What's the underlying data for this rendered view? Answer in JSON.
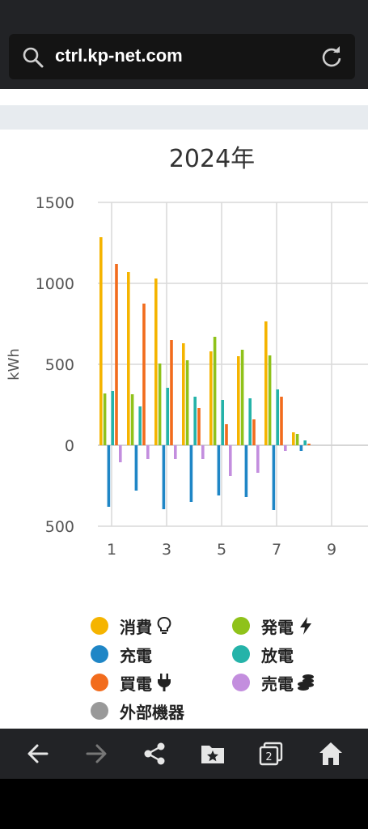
{
  "browser": {
    "url": "ctrl.kp-net.com",
    "tab_count": "2"
  },
  "legend": [
    {
      "label": "消費",
      "color": "#f5b400",
      "icon": "lightbulb-icon"
    },
    {
      "label": "発電",
      "color": "#8fc21a",
      "icon": "lightning-icon"
    },
    {
      "label": "充電",
      "color": "#1f86c6",
      "icon": ""
    },
    {
      "label": "放電",
      "color": "#25b3a9",
      "icon": ""
    },
    {
      "label": "買電",
      "color": "#f26c1d",
      "icon": "plug-icon"
    },
    {
      "label": "売電",
      "color": "#c38ede",
      "icon": "coins-icon"
    },
    {
      "label": "外部機器",
      "color": "#999999",
      "icon": ""
    }
  ],
  "chart_data": {
    "type": "bar",
    "title": "2024年",
    "ylabel": "kWh",
    "ylim": [
      -500,
      1500
    ],
    "yticks": [
      1500,
      1000,
      500,
      0,
      -500
    ],
    "ytick_labels": [
      "1500",
      "1000",
      "500",
      "0",
      "500"
    ],
    "xtick_labels": [
      "1",
      "3",
      "5",
      "7",
      "9"
    ],
    "categories": [
      "1",
      "2",
      "3",
      "4",
      "5",
      "6",
      "7",
      "8",
      "9",
      "10"
    ],
    "series": [
      {
        "name": "消費",
        "color": "#f5b400",
        "values": [
          1285,
          1070,
          1030,
          630,
          580,
          550,
          765,
          80,
          0,
          0
        ]
      },
      {
        "name": "発電",
        "color": "#8fc21a",
        "values": [
          320,
          315,
          505,
          525,
          670,
          590,
          555,
          70,
          0,
          0
        ]
      },
      {
        "name": "充電",
        "color": "#1f86c6",
        "values": [
          -380,
          -280,
          -395,
          -350,
          -310,
          -320,
          -400,
          -35,
          0,
          0
        ]
      },
      {
        "name": "放電",
        "color": "#25b3a9",
        "values": [
          335,
          240,
          355,
          300,
          280,
          290,
          345,
          30,
          0,
          0
        ]
      },
      {
        "name": "買電",
        "color": "#f26c1d",
        "values": [
          1120,
          875,
          650,
          230,
          130,
          160,
          300,
          10,
          0,
          0
        ]
      },
      {
        "name": "売電",
        "color": "#c38ede",
        "values": [
          -105,
          -85,
          -85,
          -85,
          -190,
          -170,
          -35,
          0,
          0,
          0
        ]
      },
      {
        "name": "外部機器",
        "color": "#999999",
        "values": [
          0,
          0,
          0,
          0,
          0,
          0,
          0,
          0,
          0,
          0
        ]
      }
    ]
  }
}
